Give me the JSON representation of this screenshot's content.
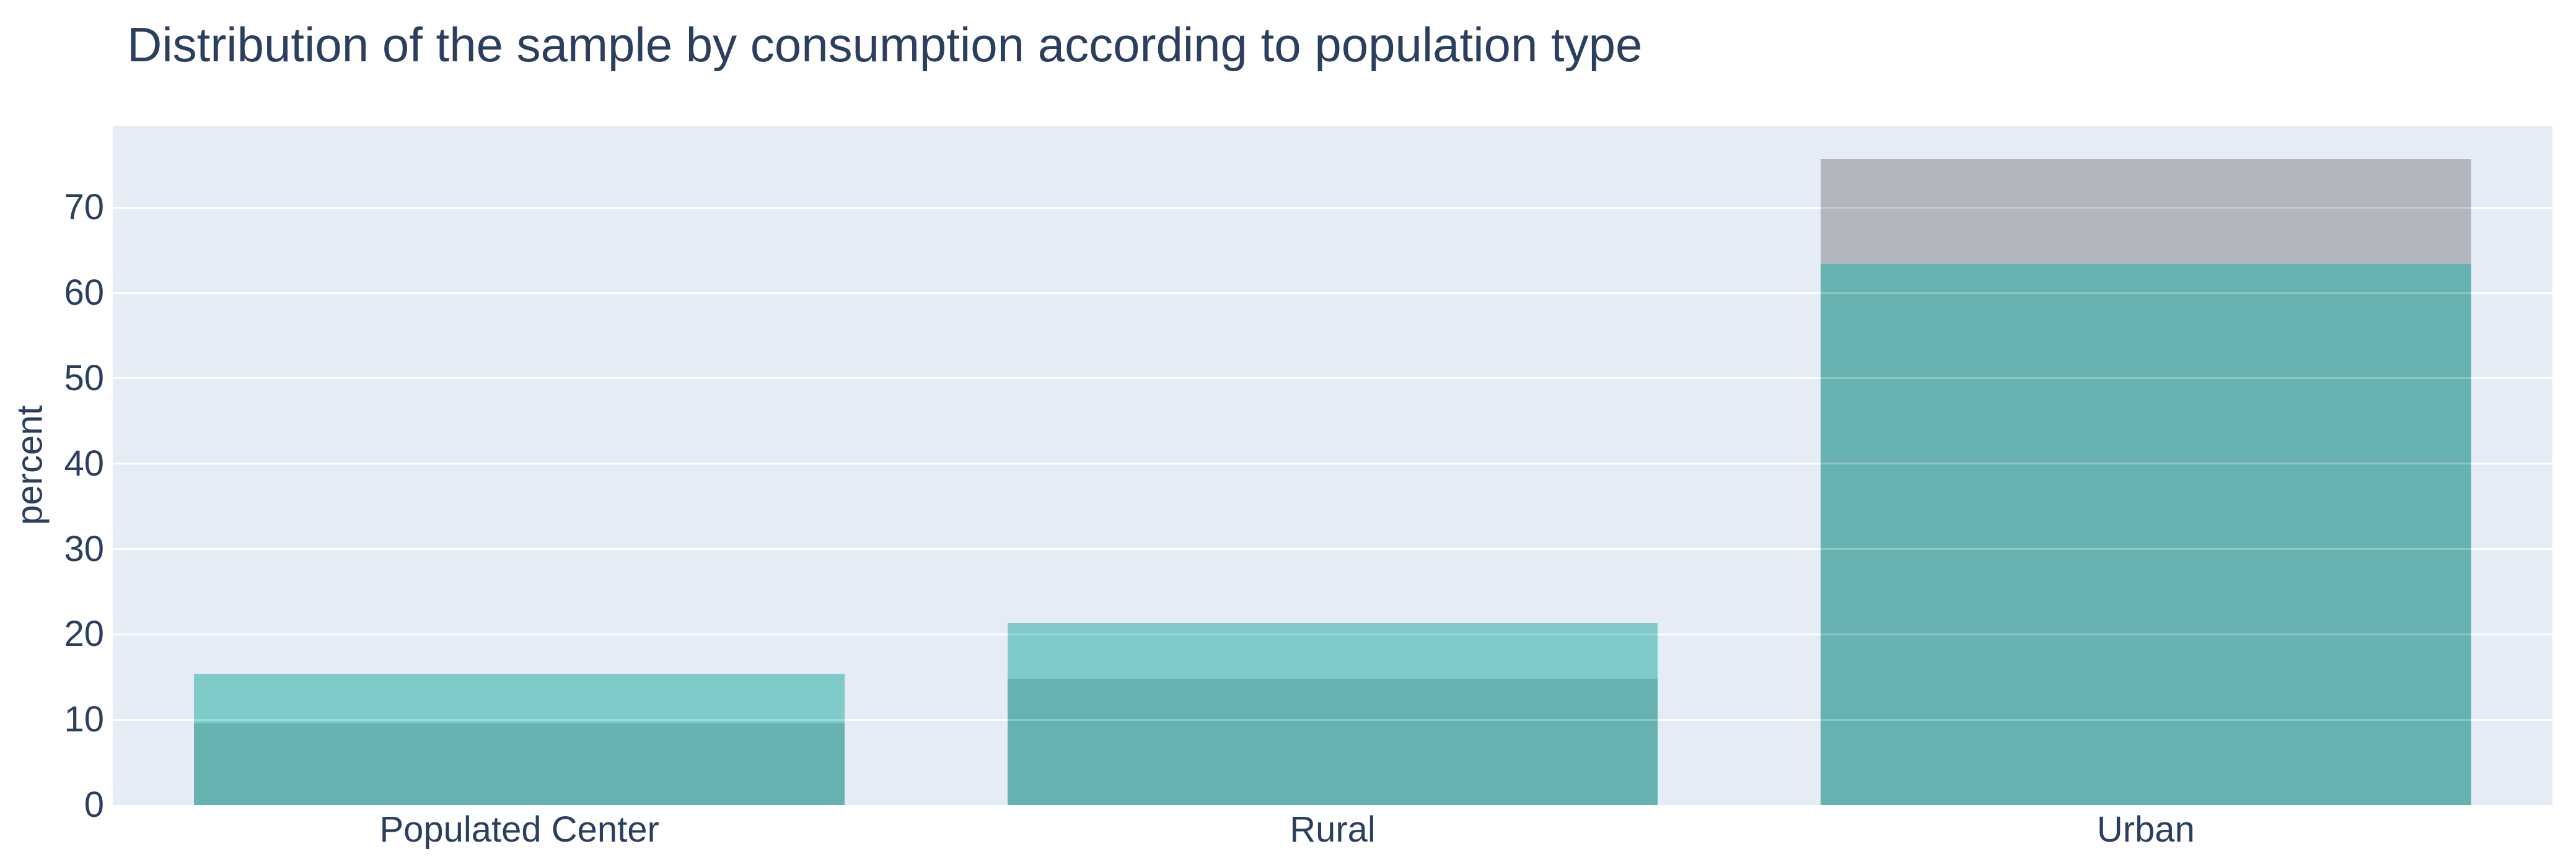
{
  "title": "Distribution of the sample by consumption according to population type",
  "colors": {
    "figure_background": "#ffffff",
    "plot_background": "#e5ecf6",
    "gridline": "#ffffff",
    "text": "#2a3f5f",
    "teal_light": "#7ecbc9",
    "teal_dark_overlap": "#66b2b1",
    "gray": "#b2b6bf"
  },
  "yaxis": {
    "title": "percent",
    "ticks": [
      0,
      10,
      20,
      30,
      40,
      50,
      60,
      70
    ]
  },
  "xaxis": {
    "categories": [
      "Populated Center",
      "Rural",
      "Urban"
    ]
  },
  "chart_data": {
    "type": "bar",
    "barmode": "overlay",
    "title": "Distribution of the sample by consumption according to population type",
    "xlabel": "",
    "ylabel": "percent",
    "ylim": [
      0,
      79.6
    ],
    "yticks": [
      0,
      10,
      20,
      30,
      40,
      50,
      60,
      70
    ],
    "grid": true,
    "legend": "none",
    "categories": [
      "Populated Center",
      "Rural",
      "Urban"
    ],
    "series": [
      {
        "name": "teal-series",
        "color": "#7ecbc9",
        "values": [
          15.4,
          21.3,
          63.4
        ]
      },
      {
        "name": "gray-series",
        "color": "#b2b6bf",
        "values": [
          9.6,
          14.8,
          75.7
        ]
      }
    ],
    "bars_visual": [
      {
        "category": "Populated Center",
        "segments": [
          {
            "from": 0,
            "to": 9.6,
            "color": "#66b2b1"
          },
          {
            "from": 9.6,
            "to": 15.4,
            "color": "#7ecbc9"
          }
        ]
      },
      {
        "category": "Rural",
        "segments": [
          {
            "from": 0,
            "to": 14.8,
            "color": "#66b2b1"
          },
          {
            "from": 14.8,
            "to": 21.3,
            "color": "#7ecbc9"
          }
        ]
      },
      {
        "category": "Urban",
        "segments": [
          {
            "from": 0,
            "to": 63.4,
            "color": "#66b2b1"
          },
          {
            "from": 63.4,
            "to": 75.7,
            "color": "#b2b6bf"
          }
        ]
      }
    ]
  }
}
